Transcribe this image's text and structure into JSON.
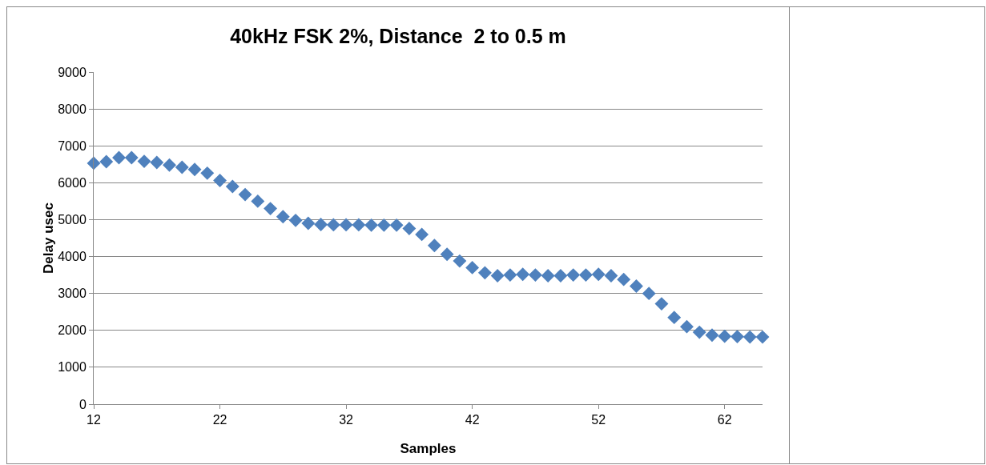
{
  "chart_data": {
    "type": "scatter",
    "title": "40kHz FSK 2%, Distance  2 to 0.5 m",
    "xlabel": "Samples",
    "ylabel": "Delay usec",
    "x": [
      12,
      13,
      14,
      15,
      16,
      17,
      18,
      19,
      20,
      21,
      22,
      23,
      24,
      25,
      26,
      27,
      28,
      29,
      30,
      31,
      32,
      33,
      34,
      35,
      36,
      37,
      38,
      39,
      40,
      41,
      42,
      43,
      44,
      45,
      46,
      47,
      48,
      49,
      50,
      51,
      52,
      53,
      54,
      55,
      56,
      57,
      58,
      59,
      60,
      61,
      62,
      63,
      64,
      65
    ],
    "values": [
      6530,
      6570,
      6680,
      6680,
      6580,
      6550,
      6480,
      6420,
      6360,
      6260,
      6060,
      5900,
      5680,
      5500,
      5300,
      5080,
      4980,
      4900,
      4870,
      4860,
      4860,
      4860,
      4850,
      4850,
      4850,
      4760,
      4600,
      4300,
      4060,
      3880,
      3700,
      3560,
      3480,
      3500,
      3520,
      3500,
      3480,
      3480,
      3500,
      3500,
      3520,
      3480,
      3380,
      3200,
      3000,
      2720,
      2350,
      2100,
      1950,
      1870,
      1840,
      1830,
      1820,
      1820
    ],
    "color": "#4f81bd",
    "marker": "diamond",
    "grid": "y",
    "xlim": [
      12,
      65
    ],
    "xticks": [
      12,
      22,
      32,
      42,
      52,
      62
    ],
    "ylim": [
      0,
      9000
    ],
    "yticks": [
      0,
      1000,
      2000,
      3000,
      4000,
      5000,
      6000,
      7000,
      8000,
      9000
    ]
  }
}
